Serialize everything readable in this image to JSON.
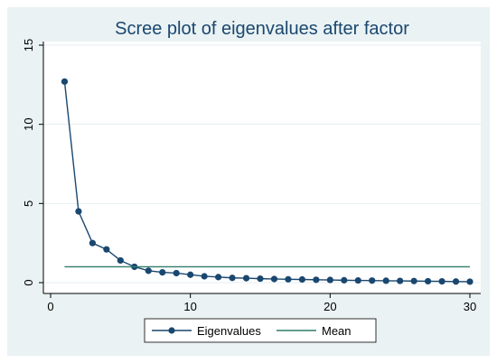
{
  "chart_data": {
    "type": "line",
    "title": "Scree plot of eigenvalues after factor",
    "xlabel": "",
    "ylabel": "",
    "xlim": [
      0,
      30
    ],
    "ylim": [
      0,
      15
    ],
    "xticks": [
      "0",
      "10",
      "20",
      "30"
    ],
    "yticks": [
      "0",
      "5",
      "10",
      "15"
    ],
    "grid": "horizontal",
    "legend_position": "bottom",
    "series": [
      {
        "name": "Eigenvalues",
        "style": "line-markers",
        "color": "#1a476f",
        "x": [
          1,
          2,
          3,
          4,
          5,
          6,
          7,
          8,
          9,
          10,
          11,
          12,
          13,
          14,
          15,
          16,
          17,
          18,
          19,
          20,
          21,
          22,
          23,
          24,
          25,
          26,
          27,
          28,
          29,
          30
        ],
        "values": [
          12.7,
          4.5,
          2.5,
          2.1,
          1.4,
          1.0,
          0.75,
          0.65,
          0.6,
          0.5,
          0.4,
          0.35,
          0.3,
          0.28,
          0.25,
          0.23,
          0.21,
          0.2,
          0.18,
          0.17,
          0.15,
          0.14,
          0.13,
          0.12,
          0.11,
          0.1,
          0.09,
          0.08,
          0.07,
          0.06
        ]
      },
      {
        "name": "Mean",
        "style": "line",
        "color": "#2e7d6b",
        "x": [
          1,
          30
        ],
        "values": [
          1,
          1
        ]
      }
    ]
  }
}
